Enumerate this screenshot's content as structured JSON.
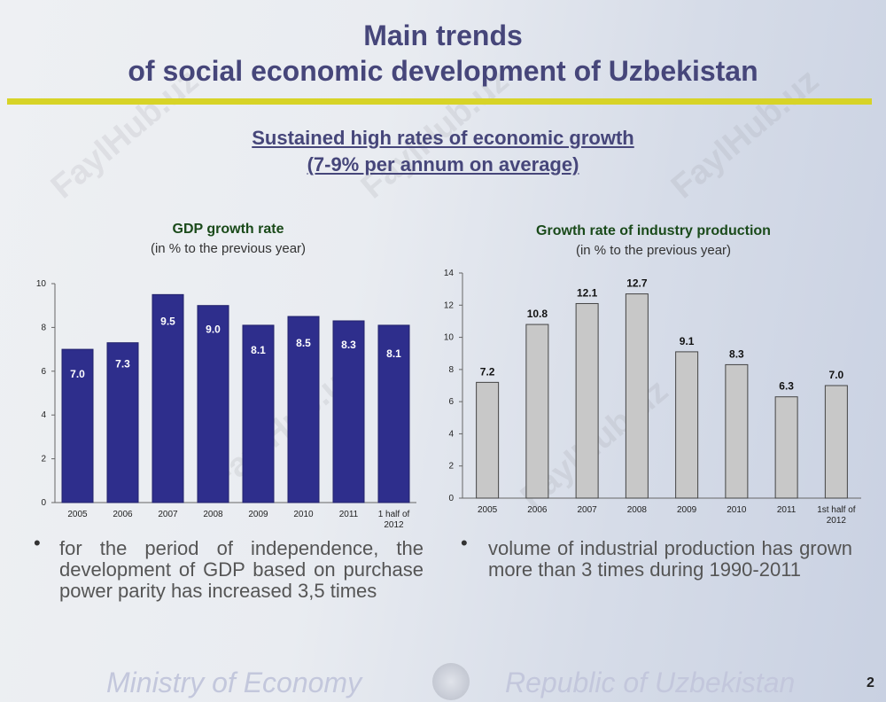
{
  "header": {
    "title_line1": "Main trends",
    "title_line2": "of social economic development of Uzbekistan",
    "subtitle_line1": "Sustained high rates of economic growth",
    "subtitle_line2": "(7-9% per annum on average)"
  },
  "chart_data": [
    {
      "type": "bar",
      "title": "GDP growth rate",
      "subtitle": "(in % to the previous year)",
      "categories": [
        "2005",
        "2006",
        "2007",
        "2008",
        "2009",
        "2010",
        "2011",
        "1 half of 2012"
      ],
      "values": [
        7.0,
        7.3,
        9.5,
        9.0,
        8.1,
        8.5,
        8.3,
        8.1
      ],
      "value_labels": [
        "7.0",
        "7.3",
        "9.5",
        "9.0",
        "8.1",
        "8.5",
        "8.3",
        "8.1"
      ],
      "yticks": [
        0,
        2,
        4,
        6,
        8,
        10
      ],
      "ylim": [
        0,
        10
      ],
      "bar_color": "#2e2e8c",
      "label_color": "#ffffff"
    },
    {
      "type": "bar",
      "title": "Growth rate of industry production",
      "subtitle": "(in % to the previous year)",
      "categories": [
        "2005",
        "2006",
        "2007",
        "2008",
        "2009",
        "2010",
        "2011",
        "1st half of 2012"
      ],
      "values": [
        7.2,
        10.8,
        12.1,
        12.7,
        9.1,
        8.3,
        6.3,
        7.0
      ],
      "value_labels": [
        "7.2",
        "10.8",
        "12.1",
        "12.7",
        "9.1",
        "8.3",
        "6.3",
        "7.0"
      ],
      "yticks": [
        0,
        2,
        4,
        6,
        8,
        10,
        12,
        14
      ],
      "ylim": [
        0,
        14
      ],
      "bar_color": "#c8c8c8",
      "label_color": "#111111"
    }
  ],
  "bullets": {
    "left": "for the period of independence, the development of GDP based on purchase power parity has increased 3,5 times",
    "right": "volume of industrial production has grown more than 3 times during 1990-2011",
    "marker": "•"
  },
  "footer": {
    "left": "Ministry of Economy",
    "right": "Republic of Uzbekistan",
    "page_number": "2"
  },
  "watermark": "FaylHub.uz"
}
